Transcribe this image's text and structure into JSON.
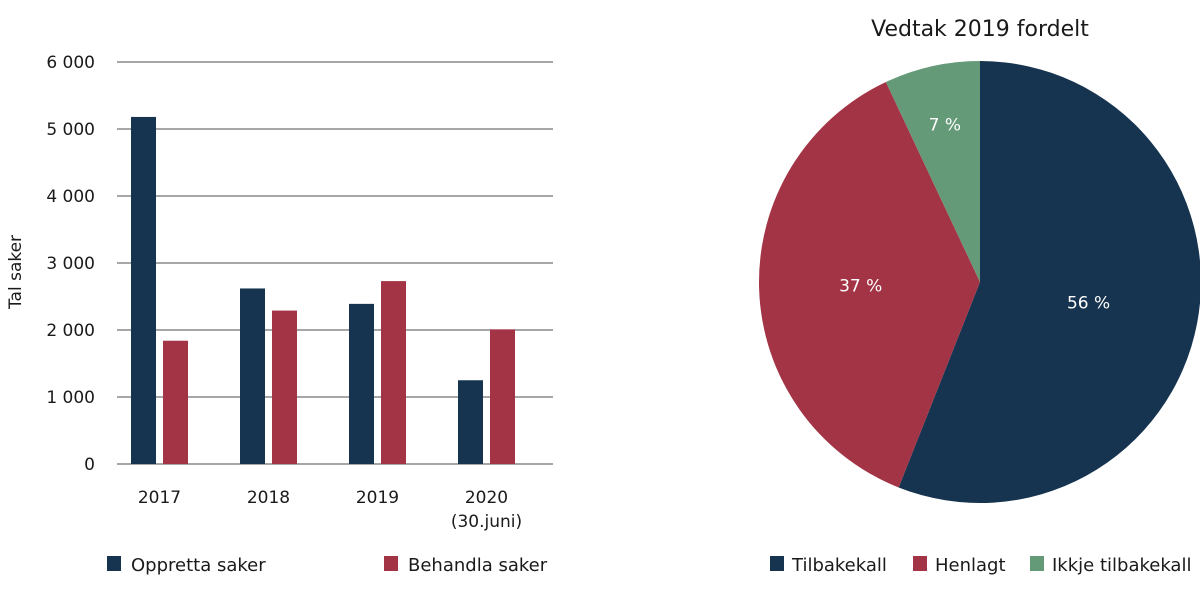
{
  "chart_data": [
    {
      "type": "bar",
      "ylabel": "Tal saker",
      "ylim": [
        0,
        6000
      ],
      "yticks": [
        0,
        1000,
        2000,
        3000,
        4000,
        5000,
        6000
      ],
      "ytick_labels": [
        "0",
        "1 000",
        "2 000",
        "3 000",
        "4 000",
        "5 000",
        "6 000"
      ],
      "categories": [
        [
          "2017"
        ],
        [
          "2018"
        ],
        [
          "2019"
        ],
        [
          "2020",
          "(30.juni)"
        ]
      ],
      "grid": true,
      "legend_position": "bottom",
      "series": [
        {
          "name": "Oppretta saker",
          "color": "#16334f",
          "values": [
            5180,
            2620,
            2390,
            1250
          ]
        },
        {
          "name": "Behandla saker",
          "color": "#a33445",
          "values": [
            1840,
            2290,
            2730,
            2010
          ]
        }
      ]
    },
    {
      "type": "pie",
      "title": "Vedtak 2019 fordelt",
      "legend_position": "bottom",
      "slices": [
        {
          "name": "Tilbakekall",
          "value": 56,
          "label": "56 %",
          "color": "#16334f"
        },
        {
          "name": "Henlagt",
          "value": 37,
          "label": "37 %",
          "color": "#a33445"
        },
        {
          "name": "Ikkje tilbakekall",
          "value": 7,
          "label": "7 %",
          "color": "#649a78"
        }
      ]
    }
  ]
}
